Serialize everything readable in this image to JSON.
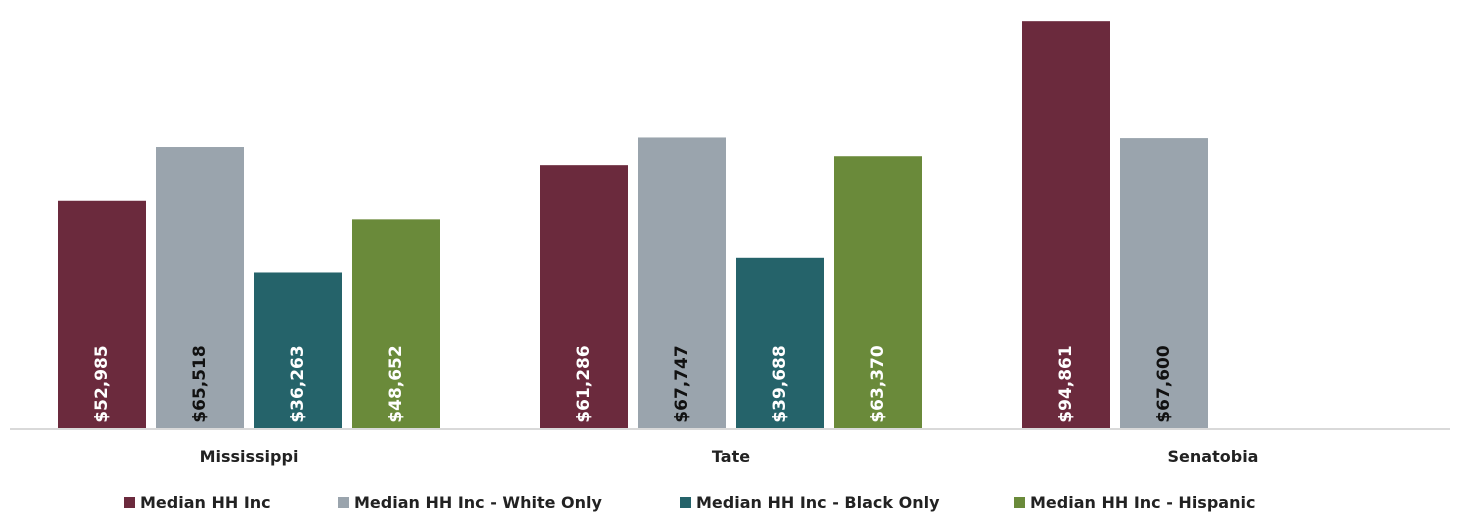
{
  "chart_data": {
    "type": "bar",
    "categories": [
      "Mississippi",
      "Tate",
      "Senatobia"
    ],
    "series": [
      {
        "name": "Median HH Inc",
        "values": [
          52985,
          61286,
          94861
        ],
        "labels": [
          "$52,985",
          "$61,286",
          "$94,861"
        ],
        "color": "#6b2a3d",
        "label_color": "#ffffff"
      },
      {
        "name": "Median HH Inc - White Only",
        "values": [
          65518,
          67747,
          67600
        ],
        "labels": [
          "$65,518",
          "$67,747",
          "$67,600"
        ],
        "color": "#9aa4ad",
        "label_color": "#111111"
      },
      {
        "name": "Median HH Inc - Black Only",
        "values": [
          36263,
          39688,
          null
        ],
        "labels": [
          "$36,263",
          "$39,688",
          ""
        ],
        "color": "#25636a",
        "label_color": "#ffffff"
      },
      {
        "name": "Median HH Inc - Hispanic",
        "values": [
          48652,
          63370,
          null
        ],
        "labels": [
          "$48,652",
          "$63,370",
          ""
        ],
        "color": "#6a8a3a",
        "label_color": "#ffffff"
      }
    ],
    "ylim": [
      0,
      97000
    ],
    "grid": false,
    "legend_position": "bottom",
    "baseline_color": "#d9d9d9"
  }
}
